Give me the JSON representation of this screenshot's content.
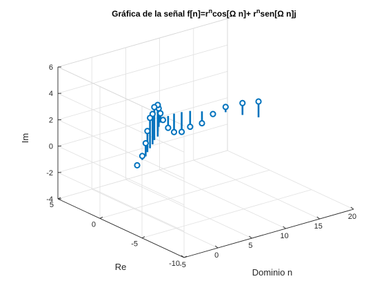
{
  "chart_data": {
    "type": "stem3d",
    "title": {
      "prefix": "Gráfica de la señal f[n]=r",
      "sup1": "n",
      "middle": "cos[Ω n]+ r",
      "sup2": "n",
      "suffix": "sen[Ω n]j"
    },
    "xlabel": "Dominio n",
    "ylabel": "Re",
    "zlabel": "Im",
    "xlim": [
      -5,
      20
    ],
    "ylim": [
      -10,
      5
    ],
    "zlim": [
      -4,
      6
    ],
    "xticks": [
      -5,
      0,
      5,
      10,
      15,
      20
    ],
    "yticks": [
      -10,
      -5,
      0,
      5
    ],
    "zticks": [
      -4,
      -2,
      0,
      2,
      4,
      6
    ],
    "grid": true,
    "box": true,
    "series": [
      {
        "color": "#0072BD",
        "marker": "circle",
        "points": [
          {
            "n": -1,
            "re": -1.2,
            "im": -0.2
          },
          {
            "n": 0,
            "re": -1.0,
            "im": 0.3
          },
          {
            "n": 1,
            "re": -0.6,
            "im": 1.0
          },
          {
            "n": 2,
            "re": 0.0,
            "im": 1.6
          },
          {
            "n": 3,
            "re": 0.5,
            "im": 2.3
          },
          {
            "n": 4,
            "re": 1.0,
            "im": 2.3
          },
          {
            "n": 5,
            "re": 1.6,
            "im": 2.5
          },
          {
            "n": 6,
            "re": 2.0,
            "im": 2.4
          },
          {
            "n": 7,
            "re": 2.8,
            "im": 2.0
          },
          {
            "n": 8,
            "re": 3.5,
            "im": 1.4
          },
          {
            "n": 9,
            "re": 4.1,
            "im": 0.7
          },
          {
            "n": 10,
            "re": 4.6,
            "im": -0.1
          },
          {
            "n": 11,
            "re": 4.8,
            "im": -0.9
          },
          {
            "n": 12,
            "re": 4.9,
            "im": -1.4
          },
          {
            "n": 13,
            "re": 4.8,
            "im": -1.5
          },
          {
            "n": 14,
            "re": 4.6,
            "im": -1.2
          },
          {
            "n": 15,
            "re": 4.0,
            "im": -0.9
          },
          {
            "n": 16,
            "re": 3.5,
            "im": -0.2
          },
          {
            "n": 17,
            "re": 2.8,
            "im": 0.4
          },
          {
            "n": 18,
            "re": 1.6,
            "im": 0.9
          },
          {
            "n": 19,
            "re": 0.5,
            "im": 1.2
          }
        ]
      }
    ]
  }
}
